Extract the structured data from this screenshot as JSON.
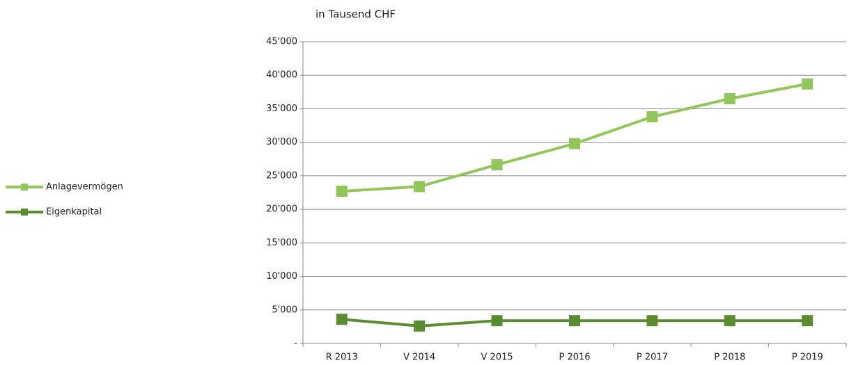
{
  "chart_data": {
    "type": "line",
    "title": "in Tausend CHF",
    "categories": [
      "R 2013",
      "V 2014",
      "V 2015",
      "P 2016",
      "P 2017",
      "P 2018",
      "P 2019"
    ],
    "series": [
      {
        "name": "Anlagevermögen",
        "color": "#92c55a",
        "values": [
          22700,
          23400,
          26650,
          29800,
          33800,
          36500,
          38700
        ]
      },
      {
        "name": "Eigenkapital",
        "color": "#5b8c32",
        "values": [
          3600,
          2600,
          3400,
          3400,
          3400,
          3400,
          3400
        ]
      }
    ],
    "ylim": [
      0,
      45000
    ],
    "yticks": [
      {
        "value": 0,
        "label": "-"
      },
      {
        "value": 5000,
        "label": "5'000"
      },
      {
        "value": 10000,
        "label": "10'000"
      },
      {
        "value": 15000,
        "label": "15'000"
      },
      {
        "value": 20000,
        "label": "20'000"
      },
      {
        "value": 25000,
        "label": "25'000"
      },
      {
        "value": 30000,
        "label": "30'000"
      },
      {
        "value": 35000,
        "label": "35'000"
      },
      {
        "value": 40000,
        "label": "40'000"
      },
      {
        "value": 45000,
        "label": "45'000"
      }
    ],
    "grid": true,
    "legend": "left"
  }
}
